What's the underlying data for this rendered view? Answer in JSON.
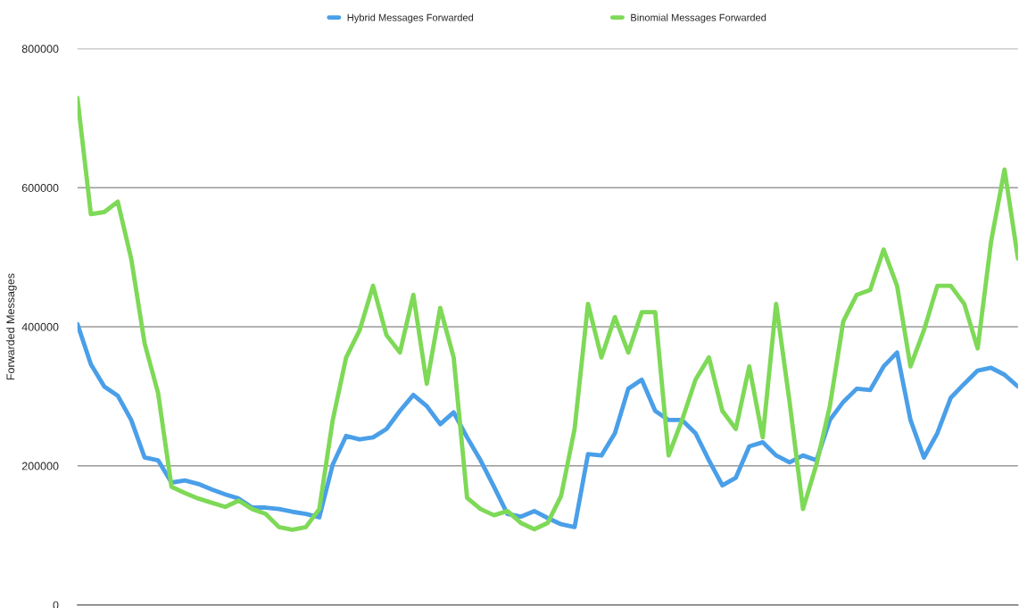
{
  "chart_data": {
    "type": "line",
    "ylabel": "Forwarded Messages",
    "ylim": [
      0,
      800000
    ],
    "yticks": [
      0,
      200000,
      400000,
      600000,
      800000
    ],
    "grid": "y",
    "legend": "top",
    "tick_labels": "y",
    "line_style": "solid",
    "categories": [
      null,
      null,
      null,
      null,
      null,
      null,
      null,
      null,
      null,
      null,
      null,
      null,
      null,
      null,
      null,
      null,
      null,
      null,
      null,
      null,
      null,
      null,
      null,
      null,
      null,
      null,
      null,
      null,
      null,
      null,
      null,
      null,
      null,
      null,
      null,
      null,
      null,
      null,
      null,
      null,
      null,
      null,
      null,
      null,
      null,
      null,
      null,
      null,
      null,
      null,
      null,
      null,
      null,
      null,
      null,
      null,
      null,
      null,
      null,
      null,
      null,
      null,
      null,
      null,
      null,
      null,
      null,
      null,
      null,
      null,
      null
    ],
    "series": [
      {
        "name": "Hybrid Messages Forwarded",
        "color": "#4a9fe8",
        "values": [
          404000,
          346000,
          314000,
          301000,
          266000,
          212000,
          208000,
          176000,
          179000,
          174000,
          166000,
          159000,
          153000,
          140000,
          140000,
          138000,
          134000,
          131000,
          126000,
          202000,
          243000,
          238000,
          241000,
          253000,
          279000,
          302000,
          286000,
          260000,
          277000,
          241000,
          208000,
          170000,
          131000,
          127000,
          135000,
          125000,
          116000,
          112000,
          217000,
          215000,
          247000,
          311000,
          324000,
          279000,
          266000,
          266000,
          247000,
          208000,
          172000,
          183000,
          228000,
          234000,
          215000,
          205000,
          215000,
          208000,
          266000,
          292000,
          311000,
          309000,
          343000,
          363000,
          266000,
          212000,
          247000,
          298000,
          318000,
          337000,
          341000,
          331000,
          314000
        ]
      },
      {
        "name": "Binomial Messages Forwarded",
        "color": "#7ed957",
        "values": [
          729000,
          562000,
          565000,
          580000,
          498000,
          376000,
          305000,
          170000,
          161000,
          153000,
          147000,
          141000,
          150000,
          138000,
          131000,
          112000,
          108000,
          112000,
          138000,
          266000,
          356000,
          395000,
          459000,
          388000,
          363000,
          446000,
          318000,
          427000,
          356000,
          154000,
          138000,
          129000,
          135000,
          118000,
          109000,
          118000,
          157000,
          253000,
          433000,
          356000,
          414000,
          363000,
          421000,
          421000,
          215000,
          266000,
          324000,
          356000,
          279000,
          253000,
          343000,
          241000,
          433000,
          292000,
          138000,
          202000,
          286000,
          408000,
          446000,
          453000,
          511000,
          459000,
          343000,
          395000,
          459000,
          459000,
          433000,
          369000,
          523000,
          626000,
          498000
        ]
      }
    ]
  }
}
